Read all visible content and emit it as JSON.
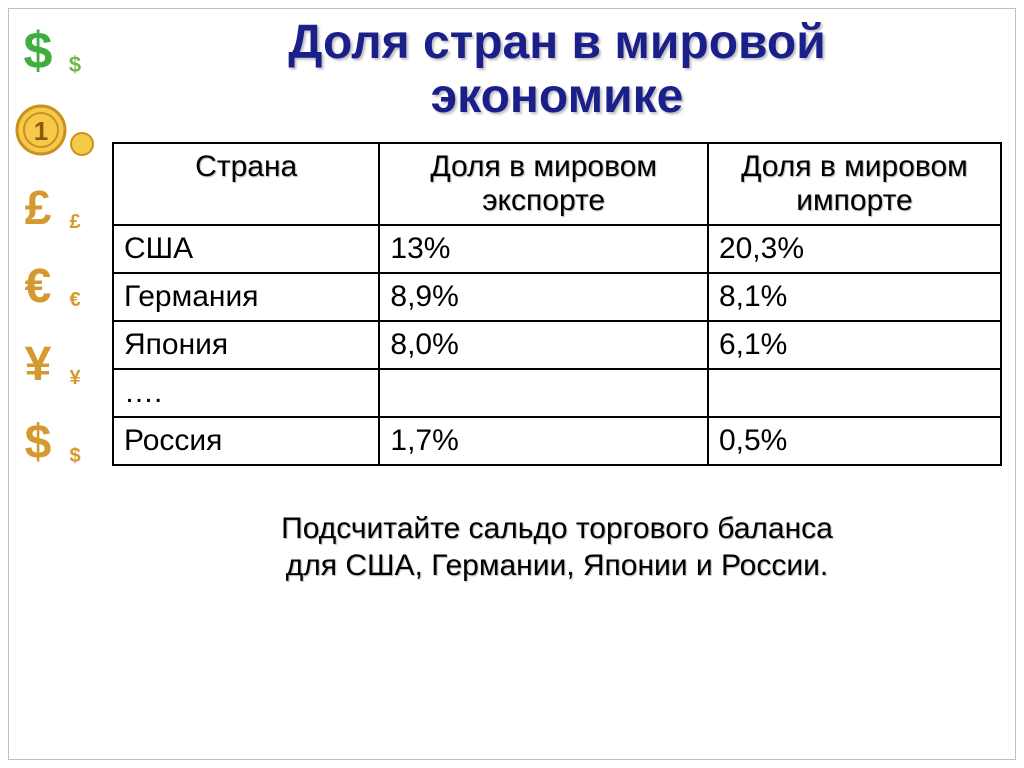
{
  "title": "Доля стран в мировой\nэкономике",
  "title_color": "#1b1f8a",
  "table": {
    "columns": [
      "Страна",
      "Доля в мировом экспорте",
      "Доля в мировом импорте"
    ],
    "rows": [
      [
        "США",
        "13%",
        "20,3%"
      ],
      [
        "Германия",
        "8,9%",
        "8,1%"
      ],
      [
        "Япония",
        "8,0%",
        "6,1%"
      ],
      [
        "….",
        "",
        ""
      ],
      [
        "Россия",
        "1,7%",
        "0,5%"
      ]
    ],
    "border_color": "#000000",
    "header_text_color": "#000000",
    "cell_text_color": "#000000",
    "font_size_pt": 23
  },
  "footer_note": "Подсчитайте сальдо торгового баланса\nдля США, Германии, Японии и России.",
  "sidebar_icons": [
    {
      "name": "dollar-icon",
      "symbol": "$",
      "big_color": "#3fae3f",
      "small_color": "#6fb94a"
    },
    {
      "name": "coin-icon",
      "symbol": "1",
      "big_color": "#e6a61c",
      "small_color": "#e6a61c"
    },
    {
      "name": "pound-icon",
      "symbol": "£",
      "big_color": "#d49a2f",
      "small_color": "#d49a2f"
    },
    {
      "name": "euro-icon",
      "symbol": "€",
      "big_color": "#d49a2f",
      "small_color": "#d49a2f"
    },
    {
      "name": "yen-icon",
      "symbol": "¥",
      "big_color": "#d49a2f",
      "small_color": "#d49a2f"
    },
    {
      "name": "dollar2-icon",
      "symbol": "$",
      "big_color": "#d49a2f",
      "small_color": "#d49a2f"
    }
  ]
}
